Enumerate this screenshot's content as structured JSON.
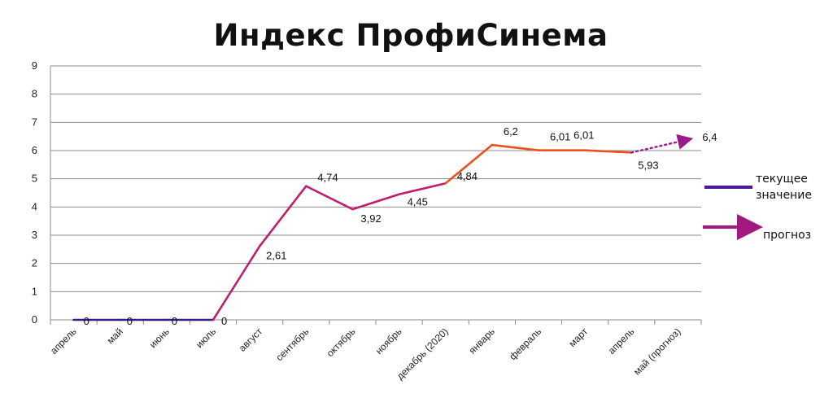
{
  "chart_data": {
    "type": "line",
    "title": "Индекс ПрофиСинема",
    "xlabel": "",
    "ylabel": "",
    "ylim": [
      0,
      9
    ],
    "yticks": [
      "0",
      "1",
      "2",
      "3",
      "4",
      "5",
      "6",
      "7",
      "8",
      "9"
    ],
    "grid": true,
    "categories": [
      "апрель",
      "май",
      "июнь",
      "июль",
      "август",
      "сентябрь",
      "октябрь",
      "ноябрь",
      "декабрь (2020)",
      "январь",
      "февраль",
      "март",
      "апрель",
      "май (прогноз)"
    ],
    "series": [
      {
        "name": "текущее значение",
        "values": [
          0,
          0,
          0,
          0,
          2.61,
          4.74,
          3.92,
          4.45,
          4.84,
          6.2,
          6.01,
          6.01,
          5.93,
          null
        ],
        "labels": [
          "0",
          "0",
          "0",
          "0",
          "2,61",
          "4,74",
          "3,92",
          "4,45",
          "4,84",
          "6,2",
          "6,01",
          "6,01",
          "5,93",
          ""
        ],
        "colors": [
          "#3a1a8c",
          "#3a1a8c",
          "#3a1a8c",
          "#3a1a8c",
          "#c01e6e",
          "#c01e6e",
          "#c01e6e",
          "#c01e6e",
          "#c01e6e",
          "#e8521e",
          "#e8521e",
          "#e8521e",
          "#e8521e",
          ""
        ]
      },
      {
        "name": "прогноз",
        "values": [
          null,
          null,
          null,
          null,
          null,
          null,
          null,
          null,
          null,
          null,
          null,
          null,
          5.93,
          6.4
        ],
        "labels": [
          "",
          "",
          "",
          "",
          "",
          "",
          "",
          "",
          "",
          "",
          "",
          "",
          "",
          "6,4"
        ],
        "color": "#9a1a8c"
      }
    ],
    "legend": {
      "placement": "right",
      "current_label": "текущее\nзначение",
      "current_color": "#4a1a9c",
      "forecast_label": "прогноз",
      "forecast_color": "#a01a80"
    }
  }
}
